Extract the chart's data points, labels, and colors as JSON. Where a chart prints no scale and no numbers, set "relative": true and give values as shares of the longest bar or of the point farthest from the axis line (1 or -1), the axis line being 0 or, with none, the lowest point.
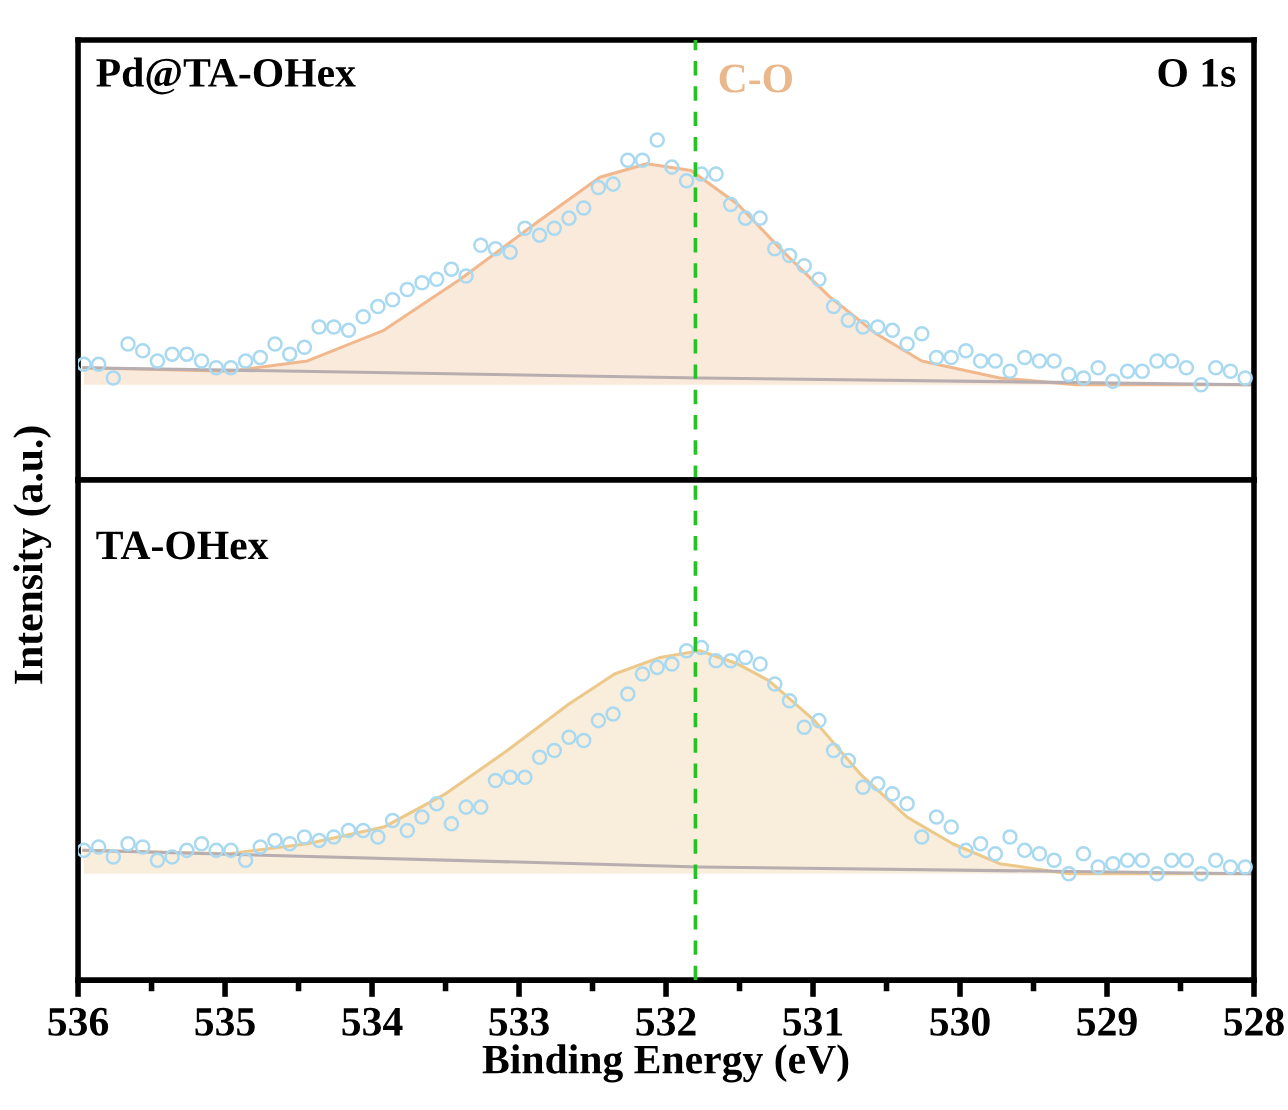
{
  "chart_data": [
    {
      "type": "scatter",
      "relative": true,
      "tick_labels": false,
      "xlim": [
        536,
        528
      ],
      "x": [
        535.96,
        535.86,
        535.76,
        535.66,
        535.56,
        535.46,
        535.36,
        535.26,
        535.16,
        535.06,
        534.96,
        534.86,
        534.76,
        534.66,
        534.56,
        534.46,
        534.36,
        534.26,
        534.16,
        534.06,
        533.96,
        533.86,
        533.76,
        533.66,
        533.56,
        533.46,
        533.36,
        533.26,
        533.16,
        533.06,
        532.96,
        532.86,
        532.76,
        532.66,
        532.56,
        532.46,
        532.36,
        532.26,
        532.16,
        532.06,
        531.96,
        531.86,
        531.76,
        531.66,
        531.56,
        531.46,
        531.36,
        531.26,
        531.16,
        531.06,
        530.96,
        530.86,
        530.76,
        530.66,
        530.56,
        530.46,
        530.36,
        530.26,
        530.16,
        530.06,
        529.96,
        529.86,
        529.76,
        529.66,
        529.56,
        529.46,
        529.36,
        529.26,
        529.16,
        529.06,
        528.96,
        528.86,
        528.76,
        528.66,
        528.56,
        528.46,
        528.36,
        528.26,
        528.16,
        528.06
      ],
      "series": [
        {
          "marker": "circle",
          "color": "#a9d9f0",
          "values": [
            0.34,
            0.34,
            0.3,
            0.4,
            0.38,
            0.35,
            0.37,
            0.37,
            0.35,
            0.33,
            0.33,
            0.35,
            0.36,
            0.4,
            0.37,
            0.39,
            0.45,
            0.45,
            0.44,
            0.48,
            0.51,
            0.53,
            0.56,
            0.58,
            0.59,
            0.62,
            0.6,
            0.69,
            0.68,
            0.67,
            0.74,
            0.72,
            0.74,
            0.77,
            0.8,
            0.86,
            0.87,
            0.94,
            0.94,
            1.0,
            0.92,
            0.88,
            0.9,
            0.9,
            0.81,
            0.77,
            0.77,
            0.68,
            0.66,
            0.63,
            0.59,
            0.51,
            0.47,
            0.45,
            0.45,
            0.44,
            0.4,
            0.43,
            0.36,
            0.36,
            0.38,
            0.35,
            0.35,
            0.32,
            0.36,
            0.35,
            0.35,
            0.31,
            0.3,
            0.33,
            0.29,
            0.32,
            0.32,
            0.35,
            0.35,
            0.33,
            0.28,
            0.33,
            0.32,
            0.3
          ]
        },
        {
          "type": "area",
          "color": "#f0b88c",
          "x": [
            535.96,
            534.97,
            534.44,
            533.92,
            533.4,
            532.87,
            532.45,
            532.13,
            531.83,
            531.51,
            531.2,
            530.89,
            530.57,
            530.26,
            529.73,
            529.21,
            528.03
          ],
          "values": [
            0.33,
            0.32,
            0.35,
            0.44,
            0.59,
            0.76,
            0.89,
            0.93,
            0.91,
            0.81,
            0.67,
            0.54,
            0.43,
            0.35,
            0.3,
            0.28,
            0.28
          ]
        },
        {
          "type": "line",
          "color": "#b8aeb0",
          "x": [
            535.96,
            531.77,
            528.03
          ],
          "values": [
            0.33,
            0.3,
            0.28
          ]
        }
      ],
      "ref_lines": [
        {
          "axis": "x",
          "value": 531.8,
          "label": "C-O",
          "color": "#22c322",
          "line_style": "dashed"
        }
      ],
      "annotations": [
        "Pd@TA-OHex",
        "O 1s"
      ]
    },
    {
      "type": "scatter",
      "relative": true,
      "tick_labels": "x",
      "xlim": [
        536,
        528
      ],
      "xticks": [
        536,
        {
          "value": 535.5,
          "label": null
        },
        535,
        {
          "value": 534.5,
          "label": null
        },
        534,
        {
          "value": 533.5,
          "label": null
        },
        533,
        {
          "value": 532.5,
          "label": null
        },
        532,
        {
          "value": 531.5,
          "label": null
        },
        531,
        {
          "value": 530.5,
          "label": null
        },
        530,
        {
          "value": 529.5,
          "label": null
        },
        529,
        {
          "value": 528.5,
          "label": null
        },
        528
      ],
      "xlabel": "Binding Energy (eV)",
      "ylabel": "Intensity (a.u.)",
      "x": [
        535.96,
        535.86,
        535.76,
        535.66,
        535.56,
        535.46,
        535.36,
        535.26,
        535.16,
        535.06,
        534.96,
        534.86,
        534.76,
        534.66,
        534.56,
        534.46,
        534.36,
        534.26,
        534.16,
        534.06,
        533.96,
        533.86,
        533.76,
        533.66,
        533.56,
        533.46,
        533.36,
        533.26,
        533.16,
        533.06,
        532.96,
        532.86,
        532.76,
        532.66,
        532.56,
        532.46,
        532.36,
        532.26,
        532.16,
        532.06,
        531.96,
        531.86,
        531.76,
        531.66,
        531.56,
        531.46,
        531.36,
        531.26,
        531.16,
        531.06,
        530.96,
        530.86,
        530.76,
        530.66,
        530.56,
        530.46,
        530.36,
        530.26,
        530.16,
        530.06,
        529.96,
        529.86,
        529.76,
        529.66,
        529.56,
        529.46,
        529.36,
        529.26,
        529.16,
        529.06,
        528.96,
        528.86,
        528.76,
        528.66,
        528.56,
        528.46,
        528.36,
        528.26,
        528.16,
        528.06
      ],
      "series": [
        {
          "marker": "circle",
          "color": "#a9d9f0",
          "values": [
            0.39,
            0.4,
            0.37,
            0.41,
            0.4,
            0.36,
            0.37,
            0.39,
            0.41,
            0.39,
            0.39,
            0.36,
            0.4,
            0.42,
            0.41,
            0.43,
            0.42,
            0.43,
            0.45,
            0.45,
            0.43,
            0.48,
            0.45,
            0.49,
            0.53,
            0.47,
            0.52,
            0.52,
            0.6,
            0.61,
            0.61,
            0.67,
            0.69,
            0.73,
            0.72,
            0.78,
            0.8,
            0.86,
            0.92,
            0.94,
            0.95,
            0.99,
            1.0,
            0.96,
            0.96,
            0.97,
            0.95,
            0.89,
            0.84,
            0.76,
            0.78,
            0.69,
            0.66,
            0.58,
            0.59,
            0.56,
            0.53,
            0.43,
            0.49,
            0.46,
            0.39,
            0.41,
            0.38,
            0.43,
            0.39,
            0.38,
            0.36,
            0.32,
            0.38,
            0.34,
            0.35,
            0.36,
            0.36,
            0.32,
            0.36,
            0.36,
            0.32,
            0.36,
            0.34,
            0.34
          ]
        },
        {
          "type": "area",
          "color": "#ecc88a",
          "x": [
            535.96,
            534.97,
            534.44,
            533.92,
            533.5,
            533.08,
            532.66,
            532.35,
            532.04,
            531.77,
            531.51,
            531.3,
            530.99,
            530.68,
            530.36,
            530.05,
            529.73,
            529.26,
            528.03
          ],
          "values": [
            0.39,
            0.38,
            0.41,
            0.46,
            0.56,
            0.69,
            0.83,
            0.92,
            0.97,
            0.99,
            0.95,
            0.9,
            0.78,
            0.62,
            0.49,
            0.41,
            0.35,
            0.32,
            0.32
          ]
        },
        {
          "type": "line",
          "color": "#b8aeb0",
          "x": [
            535.96,
            531.77,
            528.03
          ],
          "values": [
            0.39,
            0.34,
            0.32
          ]
        }
      ],
      "ref_lines": [
        {
          "axis": "x",
          "value": 531.8,
          "color": "#22c322",
          "line_style": "dashed"
        }
      ],
      "annotations": [
        "TA-OHex"
      ]
    }
  ]
}
